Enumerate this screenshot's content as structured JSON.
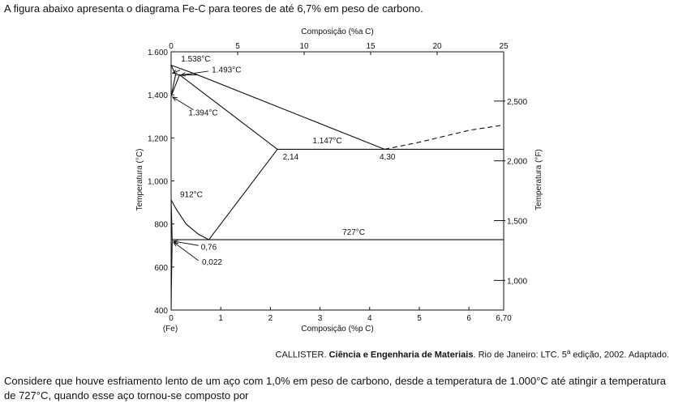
{
  "intro_text": "A figura abaixo apresenta o diagrama Fe-C para teores de até 6,7% em peso de carbono.",
  "citation": {
    "author": "CALLISTER.",
    "title": "Ciência e Engenharia de Materiais",
    "rest_before_sup": ". Rio de Janeiro: LTC. 5",
    "sup": "a",
    "rest_after_sup": " edição, 2002. Adaptado."
  },
  "question_text": "Considere que houve esfriamento lento de um aço com 1,0% em peso de carbono, desde a temperatura de 1.000°C até atingir a temperatura de 727°C, quando esse aço tornou-se composto por",
  "chart_data": {
    "type": "line",
    "xlabel_bottom": "Composição (%p C)",
    "xlabel_top": "Composição (%a C)",
    "ylabel_left": "Temperatura (°C)",
    "ylabel_right": "Temperatura (°F)",
    "xlim": [
      0,
      6.7
    ],
    "ylim": [
      400,
      1600
    ],
    "x_ticks_bottom": [
      {
        "value": 0,
        "label": "0"
      },
      {
        "value": 1,
        "label": "1"
      },
      {
        "value": 2,
        "label": "2"
      },
      {
        "value": 3,
        "label": "3"
      },
      {
        "value": 4,
        "label": "4"
      },
      {
        "value": 5,
        "label": "5"
      },
      {
        "value": 6,
        "label": "6"
      },
      {
        "value": 6.7,
        "label": "6,70"
      }
    ],
    "x_bottom_sublabel": "(Fe)",
    "x_ticks_top": [
      {
        "value": 0,
        "label": "0"
      },
      {
        "value": 5,
        "label": "5"
      },
      {
        "value": 10,
        "label": "10"
      },
      {
        "value": 15,
        "label": "15"
      },
      {
        "value": 20,
        "label": "20"
      },
      {
        "value": 25,
        "label": "25"
      }
    ],
    "y_ticks_left": [
      {
        "value": 400,
        "label": "400"
      },
      {
        "value": 600,
        "label": "600"
      },
      {
        "value": 800,
        "label": "800"
      },
      {
        "value": 1000,
        "label": "1,000"
      },
      {
        "value": 1200,
        "label": "1,200"
      },
      {
        "value": 1400,
        "label": "1,400"
      },
      {
        "value": 1600,
        "label": "1.600"
      }
    ],
    "y_ticks_right": [
      {
        "value": 1000,
        "label": "1,000"
      },
      {
        "value": 1500,
        "label": "1,500"
      },
      {
        "value": 2000,
        "label": "2,000"
      },
      {
        "value": 2500,
        "label": "2,500"
      }
    ],
    "series": [
      {
        "style": "solid",
        "points": [
          [
            0,
            1538
          ],
          [
            0.53,
            1493
          ],
          [
            4.3,
            1147
          ]
        ]
      },
      {
        "style": "dashed",
        "points": [
          [
            4.3,
            1147
          ],
          [
            5.0,
            1180
          ],
          [
            6.0,
            1235
          ],
          [
            6.7,
            1260
          ]
        ]
      },
      {
        "style": "solid",
        "points": [
          [
            0,
            1538
          ],
          [
            0.09,
            1493
          ]
        ]
      },
      {
        "style": "solid",
        "points": [
          [
            0.09,
            1493
          ],
          [
            0.53,
            1493
          ]
        ]
      },
      {
        "style": "solid",
        "points": [
          [
            0.09,
            1493
          ],
          [
            0,
            1394
          ]
        ]
      },
      {
        "style": "solid",
        "points": [
          [
            0.17,
            1493
          ],
          [
            0,
            1394
          ]
        ]
      },
      {
        "style": "solid",
        "points": [
          [
            0.17,
            1493
          ],
          [
            2.14,
            1147
          ]
        ]
      },
      {
        "style": "solid",
        "points": [
          [
            2.14,
            1147
          ],
          [
            6.7,
            1147
          ]
        ]
      },
      {
        "style": "solid",
        "points": [
          [
            2.14,
            1147
          ],
          [
            0.76,
            727
          ]
        ]
      },
      {
        "style": "solid",
        "points": [
          [
            0,
            912
          ],
          [
            0.1,
            870
          ],
          [
            0.3,
            800
          ],
          [
            0.55,
            752
          ],
          [
            0.76,
            727
          ]
        ]
      },
      {
        "style": "solid",
        "points": [
          [
            0.022,
            727
          ],
          [
            6.7,
            727
          ]
        ]
      },
      {
        "style": "solid",
        "points": [
          [
            0,
            912
          ],
          [
            0.022,
            727
          ]
        ]
      },
      {
        "style": "solid",
        "points": [
          [
            0.022,
            727
          ],
          [
            0.012,
            600
          ],
          [
            0.005,
            500
          ],
          [
            0,
            400
          ]
        ]
      }
    ],
    "annotations": [
      {
        "text": "1.538°C",
        "x": 0.2,
        "y": 1555
      },
      {
        "text": "1.493°C",
        "x": 0.82,
        "y": 1505
      },
      {
        "text": "1.394°C",
        "x": 0.35,
        "y": 1305
      },
      {
        "text": "1.147°C",
        "x": 2.85,
        "y": 1175
      },
      {
        "text": "2,14",
        "x": 2.25,
        "y": 1100
      },
      {
        "text": "4,30",
        "x": 4.2,
        "y": 1100
      },
      {
        "text": "912°C",
        "x": 0.18,
        "y": 925
      },
      {
        "text": "727°C",
        "x": 3.45,
        "y": 750
      },
      {
        "text": "0,76",
        "x": 0.6,
        "y": 680
      },
      {
        "text": "0,022",
        "x": 0.62,
        "y": 610
      }
    ]
  }
}
